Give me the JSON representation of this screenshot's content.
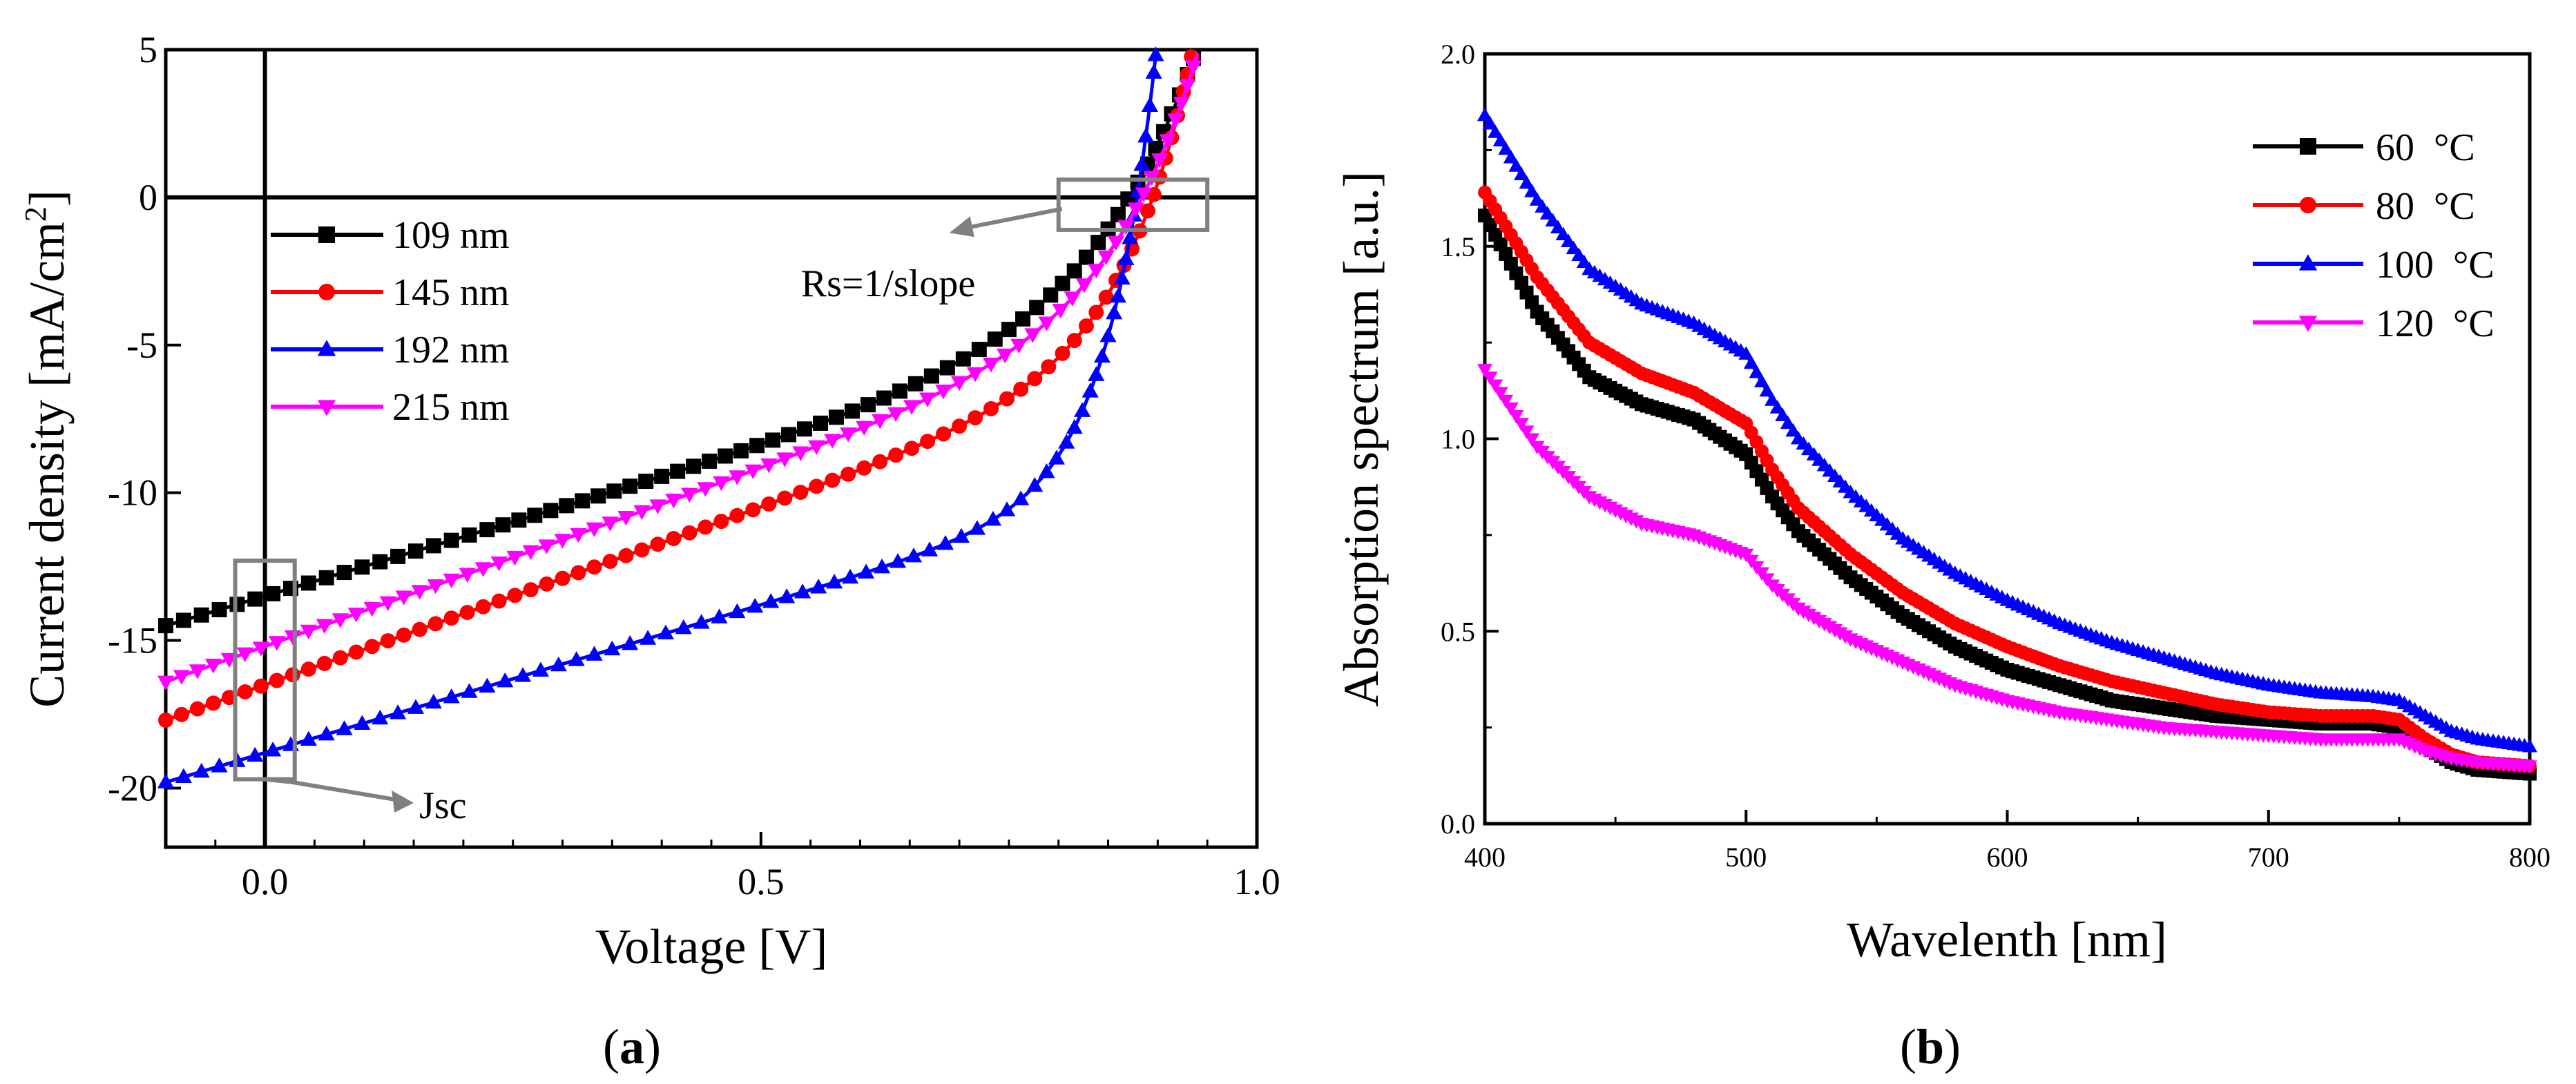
{
  "chart_data": [
    {
      "type": "line",
      "panel_label": "a",
      "xlabel": "Voltage [V]",
      "ylabel": "Current density [mA/cm",
      "ylabel_sup": "2",
      "ylabel_end": "]",
      "xlim": [
        -0.1,
        1.0
      ],
      "ylim": [
        -22,
        5
      ],
      "xticks": [
        0.0,
        0.5,
        1.0
      ],
      "xtick_labels": [
        "0.0",
        "0.5",
        "1.0"
      ],
      "yticks": [
        5,
        0,
        -5,
        -10,
        -15,
        -20
      ],
      "ytick_labels": [
        "5",
        "0",
        "-5",
        "-10",
        "-15",
        "-20"
      ],
      "reference_lines": {
        "x": 0,
        "y": 0
      },
      "legend_position": "left",
      "series": [
        {
          "name": "109 nm",
          "color": "#000000",
          "marker": "square",
          "jsc": -13.5,
          "slope": 10,
          "voc": 0.871,
          "shape": 0.106
        },
        {
          "name": "145 nm",
          "color": "#ff0000",
          "marker": "circle",
          "jsc": -16.5,
          "slope": 12,
          "voc": 0.895,
          "shape": 0.07
        },
        {
          "name": "192 nm",
          "color": "#0000ff",
          "marker": "triangle-up",
          "jsc": -18.8,
          "slope": 10,
          "voc": 0.879,
          "shape": 0.05
        },
        {
          "name": "215 nm",
          "color": "#ff00ff",
          "marker": "triangle-down",
          "jsc": -15.2,
          "slope": 12,
          "voc": 0.884,
          "shape": 0.086
        }
      ],
      "annotations": [
        {
          "text": "Rs=1/slope",
          "box": {
            "x": [
              0.8,
              0.95
            ],
            "y": [
              -1.1,
              0.6
            ]
          },
          "arrow_to": [
            0.69,
            -1.2
          ]
        },
        {
          "text": "Jsc",
          "box": {
            "x": [
              -0.03,
              0.03
            ],
            "y": [
              -19.7,
              -12.3
            ]
          },
          "arrow_to": [
            0.15,
            -20.5
          ]
        }
      ]
    },
    {
      "type": "line",
      "panel_label": "b",
      "xlabel": "Wavelenth [nm]",
      "ylabel": "Absorption spectrum [a.u.]",
      "xlim": [
        400,
        800
      ],
      "ylim": [
        0.0,
        2.0
      ],
      "xticks": [
        400,
        500,
        600,
        700,
        800
      ],
      "xtick_labels": [
        "400",
        "500",
        "600",
        "700",
        "800"
      ],
      "yticks": [
        0.0,
        0.5,
        1.0,
        1.5,
        2.0
      ],
      "ytick_labels": [
        "0.0",
        "0.5",
        "1.0",
        "1.5",
        "2.0"
      ],
      "legend_position": "top-right",
      "series": [
        {
          "name": "60  °C",
          "color": "#000000",
          "marker": "square",
          "points": [
            [
              400,
              1.58
            ],
            [
              420,
              1.33
            ],
            [
              440,
              1.16
            ],
            [
              460,
              1.09
            ],
            [
              480,
              1.05
            ],
            [
              500,
              0.96
            ],
            [
              510,
              0.85
            ],
            [
              520,
              0.76
            ],
            [
              540,
              0.64
            ],
            [
              560,
              0.54
            ],
            [
              580,
              0.46
            ],
            [
              600,
              0.4
            ],
            [
              620,
              0.36
            ],
            [
              640,
              0.32
            ],
            [
              660,
              0.3
            ],
            [
              680,
              0.28
            ],
            [
              700,
              0.27
            ],
            [
              720,
              0.26
            ],
            [
              740,
              0.26
            ],
            [
              750,
              0.25
            ],
            [
              760,
              0.2
            ],
            [
              770,
              0.16
            ],
            [
              780,
              0.14
            ],
            [
              800,
              0.13
            ]
          ]
        },
        {
          "name": "80  °C",
          "color": "#ff0000",
          "marker": "circle",
          "points": [
            [
              400,
              1.64
            ],
            [
              420,
              1.42
            ],
            [
              440,
              1.25
            ],
            [
              460,
              1.17
            ],
            [
              480,
              1.12
            ],
            [
              500,
              1.04
            ],
            [
              510,
              0.92
            ],
            [
              520,
              0.82
            ],
            [
              540,
              0.7
            ],
            [
              560,
              0.6
            ],
            [
              580,
              0.52
            ],
            [
              600,
              0.46
            ],
            [
              620,
              0.41
            ],
            [
              640,
              0.37
            ],
            [
              660,
              0.34
            ],
            [
              680,
              0.31
            ],
            [
              700,
              0.29
            ],
            [
              720,
              0.28
            ],
            [
              740,
              0.28
            ],
            [
              750,
              0.27
            ],
            [
              760,
              0.22
            ],
            [
              770,
              0.18
            ],
            [
              780,
              0.16
            ],
            [
              800,
              0.15
            ]
          ]
        },
        {
          "name": "100  °C",
          "color": "#0000ff",
          "marker": "triangle-up",
          "points": [
            [
              400,
              1.84
            ],
            [
              420,
              1.62
            ],
            [
              440,
              1.44
            ],
            [
              460,
              1.35
            ],
            [
              480,
              1.3
            ],
            [
              500,
              1.22
            ],
            [
              510,
              1.1
            ],
            [
              520,
              1.0
            ],
            [
              540,
              0.86
            ],
            [
              560,
              0.74
            ],
            [
              580,
              0.65
            ],
            [
              600,
              0.58
            ],
            [
              620,
              0.52
            ],
            [
              640,
              0.47
            ],
            [
              660,
              0.43
            ],
            [
              680,
              0.39
            ],
            [
              700,
              0.36
            ],
            [
              720,
              0.34
            ],
            [
              740,
              0.33
            ],
            [
              750,
              0.32
            ],
            [
              760,
              0.28
            ],
            [
              770,
              0.24
            ],
            [
              780,
              0.22
            ],
            [
              800,
              0.2
            ]
          ]
        },
        {
          "name": "120  °C",
          "color": "#ff00ff",
          "marker": "triangle-down",
          "points": [
            [
              400,
              1.18
            ],
            [
              420,
              0.98
            ],
            [
              440,
              0.85
            ],
            [
              460,
              0.78
            ],
            [
              480,
              0.75
            ],
            [
              500,
              0.7
            ],
            [
              510,
              0.62
            ],
            [
              520,
              0.56
            ],
            [
              540,
              0.48
            ],
            [
              560,
              0.42
            ],
            [
              580,
              0.36
            ],
            [
              600,
              0.32
            ],
            [
              620,
              0.29
            ],
            [
              640,
              0.27
            ],
            [
              660,
              0.25
            ],
            [
              680,
              0.24
            ],
            [
              700,
              0.23
            ],
            [
              720,
              0.22
            ],
            [
              740,
              0.22
            ],
            [
              750,
              0.22
            ],
            [
              760,
              0.19
            ],
            [
              770,
              0.17
            ],
            [
              780,
              0.16
            ],
            [
              800,
              0.15
            ]
          ]
        }
      ]
    }
  ]
}
